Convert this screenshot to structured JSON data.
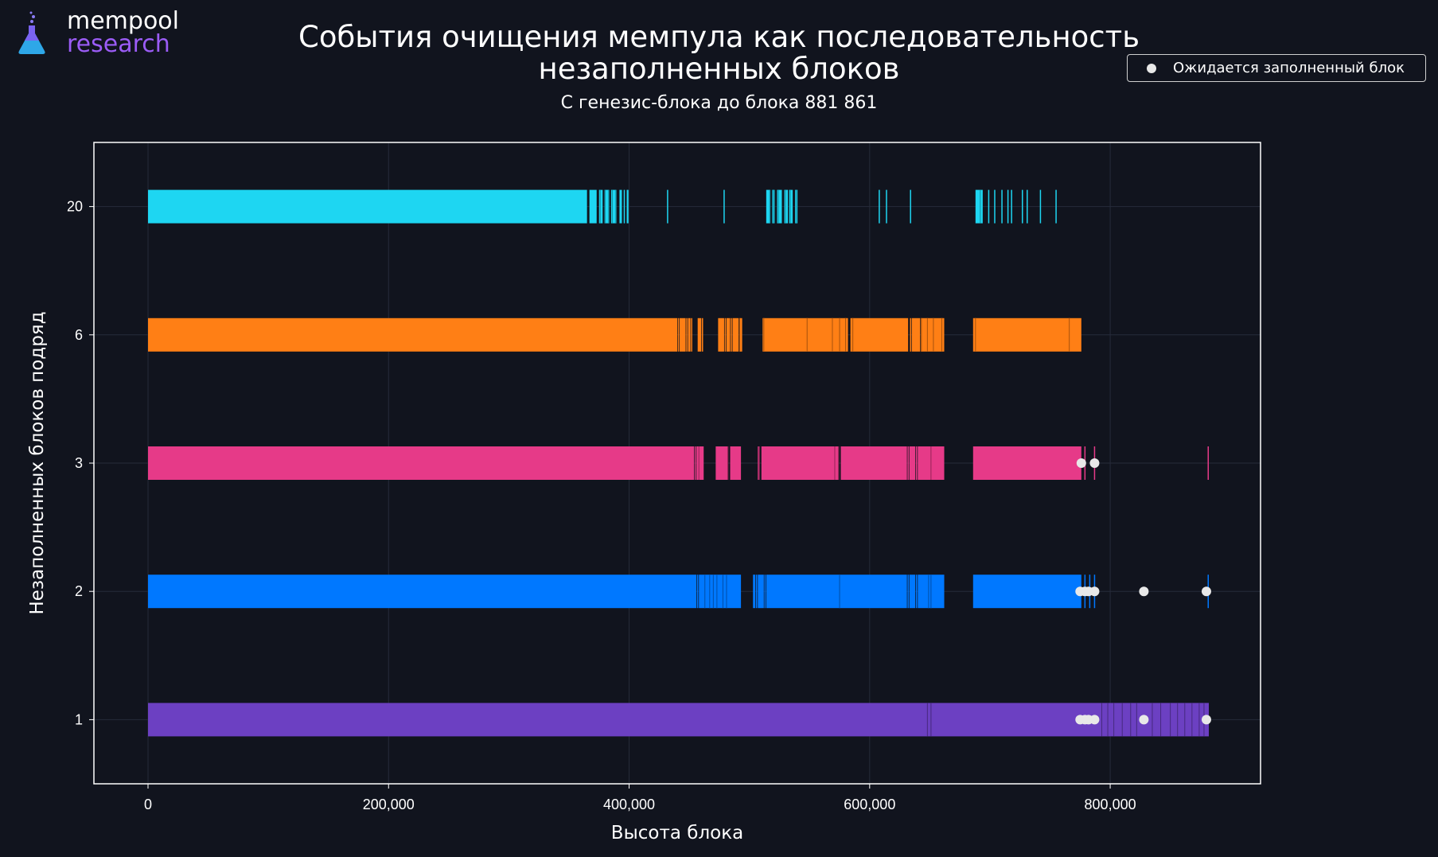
{
  "logo": {
    "line1": "mempool",
    "line2": "research"
  },
  "legend": {
    "label": "Ожидается заполненный блок",
    "marker_color": "#e8e8e8"
  },
  "chart_data": {
    "type": "scatter",
    "title": "События очищения мемпула как последовательность незаполненных блоков",
    "subtitle": "С генезис-блока до блока 881 861",
    "xlabel": "Высота блока",
    "ylabel": "Незаполненных блоков подряд",
    "xlim": [
      -45000,
      925000
    ],
    "x_ticks": [
      0,
      200000,
      400000,
      600000,
      800000
    ],
    "x_tick_labels": [
      "0",
      "200,000",
      "400,000",
      "600,000",
      "800,000"
    ],
    "categories": [
      "1",
      "2",
      "3",
      "6",
      "20"
    ],
    "grid": true,
    "background": "#11141e",
    "series": [
      {
        "category": "20",
        "color": "#1ed6f2",
        "spans": [
          [
            0,
            365000
          ],
          [
            367000,
            373000
          ],
          [
            375000,
            378000
          ],
          [
            380000,
            383000
          ],
          [
            385000,
            389000
          ],
          [
            392000,
            394000
          ],
          [
            398000,
            399500
          ],
          [
            514000,
            517000
          ],
          [
            519000,
            521000
          ],
          [
            523000,
            527000
          ],
          [
            529000,
            532000
          ],
          [
            533000,
            536000
          ],
          [
            538000,
            540000
          ],
          [
            688000,
            694000
          ]
        ],
        "ticks": [
          376000,
          380000,
          383000,
          386000,
          389000,
          396000,
          432000,
          479000,
          517000,
          520000,
          524000,
          530000,
          534000,
          539000,
          608000,
          614000,
          634000,
          692000,
          699000,
          704000,
          710000,
          715000,
          718000,
          727000,
          731000,
          742000,
          755000
        ]
      },
      {
        "category": "6",
        "color": "#ff7f15",
        "spans": [
          [
            0,
            440000
          ],
          [
            442000,
            447000
          ],
          [
            449000,
            451000
          ],
          [
            457000,
            460000
          ],
          [
            474000,
            479000
          ],
          [
            481000,
            484000
          ],
          [
            486000,
            491000
          ],
          [
            492000,
            494000
          ],
          [
            511000,
            582000
          ],
          [
            584000,
            632000
          ],
          [
            635000,
            642000
          ],
          [
            643000,
            662000
          ],
          [
            686000,
            776000
          ]
        ],
        "ticks": [
          441000,
          448000,
          452000,
          461000,
          480000,
          485000,
          492000,
          512000,
          548000,
          569000,
          575000,
          580000,
          586000,
          634000,
          643000,
          648000,
          653000,
          660000,
          688000,
          766000
        ]
      },
      {
        "category": "3",
        "color": "#e63a88",
        "spans": [
          [
            0,
            454000
          ],
          [
            456000,
            462000
          ],
          [
            472000,
            482000
          ],
          [
            484000,
            493000
          ],
          [
            507000,
            508500
          ],
          [
            510000,
            574000
          ],
          [
            576000,
            631000
          ],
          [
            633000,
            638000
          ],
          [
            640000,
            662000
          ],
          [
            686000,
            776000
          ]
        ],
        "ticks": [
          455000,
          458000,
          482000,
          508000,
          571000,
          574000,
          632000,
          639000,
          651000,
          779000,
          787000,
          881500
        ]
      },
      {
        "category": "2",
        "color": "#0078ff",
        "spans": [
          [
            0,
            456000
          ],
          [
            458000,
            493000
          ],
          [
            503000,
            505000
          ],
          [
            507000,
            512000
          ],
          [
            514000,
            631000
          ],
          [
            633000,
            638000
          ],
          [
            640000,
            662000
          ],
          [
            686000,
            776000
          ]
        ],
        "ticks": [
          457000,
          463000,
          467000,
          470000,
          473000,
          478000,
          481000,
          506000,
          513000,
          575000,
          632000,
          639000,
          649000,
          651000,
          779000,
          783000,
          787000,
          881500
        ]
      },
      {
        "category": "1",
        "color": "#6c40c2",
        "spans": [
          [
            0,
            882000
          ]
        ],
        "ticks": [
          648000,
          651000,
          793000,
          798000,
          803000,
          810000,
          817000,
          822000,
          835000,
          842000,
          850000,
          856000,
          862000,
          868000,
          874000,
          878000
        ]
      }
    ],
    "expected_full_block_markers": [
      {
        "category": "3",
        "x": [
          776000,
          787000
        ]
      },
      {
        "category": "2",
        "x": [
          775000,
          779000,
          782000,
          787000,
          828000,
          880000
        ]
      },
      {
        "category": "1",
        "x": [
          775000,
          779000,
          782000,
          787000,
          828000,
          880000
        ]
      }
    ]
  }
}
